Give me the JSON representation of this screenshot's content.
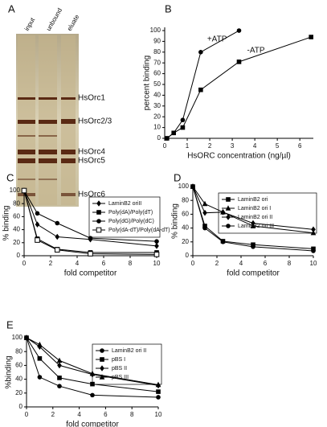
{
  "gel": {
    "panel": "A",
    "lanes": [
      "input",
      "unbound",
      "eluate"
    ],
    "bands": [
      "HsOrc1",
      "HsOrc2/3",
      "HsOrc4",
      "HsOrc5",
      "HsOrc6"
    ]
  },
  "chart_data": [
    {
      "type": "line",
      "panel": "B",
      "xlabel": "HsORC concentration (ng/µl)",
      "ylabel": "percent binding",
      "xlim": [
        0,
        6.6
      ],
      "xticks": [
        0,
        1,
        2,
        3,
        4,
        5,
        6
      ],
      "ylim": [
        0,
        103
      ],
      "yticks": [
        0,
        10,
        20,
        30,
        40,
        50,
        60,
        70,
        80,
        90,
        100
      ],
      "legend": "annotations",
      "series": [
        {
          "name": "+ATP",
          "marker": "circle",
          "color": "#000",
          "x": [
            0.1,
            0.4,
            0.8,
            1.6,
            3.3
          ],
          "values": [
            0,
            5,
            17,
            80,
            100
          ]
        },
        {
          "name": "-ATP",
          "marker": "square",
          "color": "#000",
          "x": [
            0.1,
            0.4,
            0.8,
            1.6,
            3.3,
            6.5
          ],
          "values": [
            0,
            5,
            10,
            45,
            71,
            94
          ]
        }
      ]
    },
    {
      "type": "line",
      "panel": "C",
      "xlabel": "fold competitor",
      "ylabel": "% binding",
      "xlim": [
        0,
        10
      ],
      "xticks": [
        0,
        2,
        4,
        6,
        8,
        10
      ],
      "ylim": [
        0,
        100
      ],
      "yticks": [
        0,
        20,
        40,
        60,
        80,
        100
      ],
      "legend": "upper right",
      "x": [
        0,
        1,
        2.5,
        5,
        10
      ],
      "series": [
        {
          "name": "LaminB2 oriII",
          "marker": "diamond",
          "color": "#000",
          "values": [
            100,
            48,
            29,
            25,
            15
          ]
        },
        {
          "name": "Poly(dA)/Poly(dT)",
          "marker": "square",
          "color": "#000",
          "values": [
            100,
            26,
            10,
            5,
            5
          ]
        },
        {
          "name": "Poly(dG)/Poly(dC)",
          "marker": "circle",
          "color": "#000",
          "values": [
            100,
            65,
            50,
            27,
            22
          ]
        },
        {
          "name": "Poly(dA-dT)/Poly(dA-dT)",
          "marker": "open-square",
          "color": "#000",
          "values": [
            100,
            24,
            9,
            3,
            2
          ]
        }
      ]
    },
    {
      "type": "line",
      "panel": "D",
      "xlabel": "fold competitor",
      "ylabel": "% binding",
      "xlim": [
        0,
        10
      ],
      "xticks": [
        0,
        2,
        4,
        6,
        8,
        10
      ],
      "ylim": [
        0,
        100
      ],
      "yticks": [
        0,
        20,
        40,
        60,
        80,
        100
      ],
      "legend": "upper right",
      "x": [
        0,
        1,
        2.5,
        5,
        10
      ],
      "series": [
        {
          "name": "LaminB2 ori",
          "marker": "square",
          "color": "#000",
          "values": [
            100,
            43,
            21,
            16,
            10
          ]
        },
        {
          "name": "LaminB2 ori I",
          "marker": "triangle",
          "color": "#000",
          "values": [
            100,
            75,
            63,
            43,
            33
          ]
        },
        {
          "name": "LaminB2 ori II",
          "marker": "diamond",
          "color": "#000",
          "values": [
            100,
            62,
            63,
            47,
            38
          ]
        },
        {
          "name": "LaminB2 ori III",
          "marker": "circle",
          "color": "#000",
          "values": [
            100,
            40,
            20,
            13,
            7
          ]
        }
      ]
    },
    {
      "type": "line",
      "panel": "E",
      "xlabel": "fold competitor",
      "ylabel": "%binding",
      "xlim": [
        0,
        10
      ],
      "xticks": [
        0,
        2,
        4,
        6,
        8,
        10
      ],
      "ylim": [
        0,
        100
      ],
      "yticks": [
        0,
        20,
        40,
        60,
        80,
        100
      ],
      "legend": "upper right",
      "x": [
        0,
        1,
        2.5,
        5,
        10
      ],
      "series": [
        {
          "name": "LaminB2 ori II",
          "marker": "circle",
          "color": "#000",
          "values": [
            100,
            43,
            30,
            17,
            14
          ]
        },
        {
          "name": "pBS I",
          "marker": "square",
          "color": "#000",
          "values": [
            100,
            70,
            42,
            33,
            22
          ]
        },
        {
          "name": "pBS II",
          "marker": "diamond",
          "color": "#000",
          "values": [
            100,
            87,
            60,
            47,
            31
          ]
        },
        {
          "name": "pBS III",
          "marker": "triangle",
          "color": "#000",
          "values": [
            100,
            90,
            67,
            48,
            32
          ]
        }
      ]
    }
  ]
}
